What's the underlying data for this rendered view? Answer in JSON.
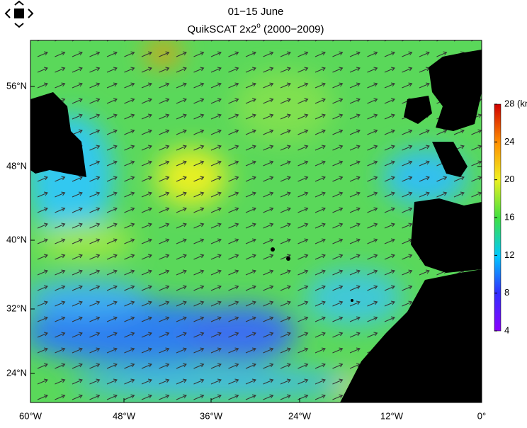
{
  "header": {
    "title": "01−15 June",
    "subtitle_main": "QuikSCAT 2x2",
    "subtitle_sup": "o",
    "subtitle_rest": " (2000−2009)"
  },
  "map": {
    "lat_labels": [
      "56°N",
      "48°N",
      "40°N",
      "32°N",
      "24°N"
    ],
    "lon_labels": [
      "60°W",
      "48°W",
      "36°W",
      "24°W",
      "12°W",
      "0°"
    ]
  },
  "colorbar": {
    "ticks": [
      4,
      8,
      12,
      16,
      20,
      24,
      28
    ],
    "unit": "(kn"
  }
}
